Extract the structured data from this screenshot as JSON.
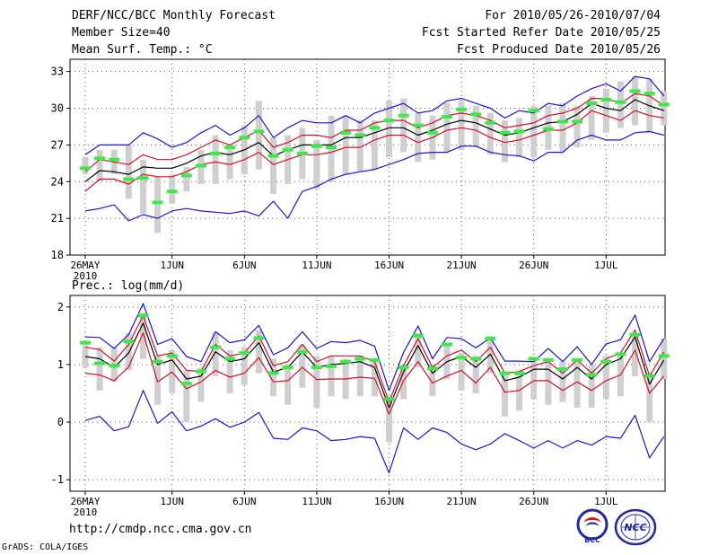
{
  "header": {
    "title": "DERF/NCC/BCC Monthly Forecast",
    "member_size": "Member Size=40",
    "variable": "Mean Surf. Temp.: °C",
    "period": "For 2010/05/26-2010/07/04",
    "refer_date": "Fcst Started Refer Date 2010/05/25",
    "produced_date": "Fcst Produced Date 2010/05/26"
  },
  "footer": {
    "url": "http://cmdp.ncc.cma.gov.cn",
    "credit": "GrADS: COLA/IGES",
    "logo_bcc": "BCC",
    "logo_ncc": "NCC"
  },
  "colors": {
    "ensemble_mean": "#000000",
    "spread": "#d2102a",
    "extremes": "#1c16c8",
    "box": "#cfcfcf",
    "median": "#3ee84a",
    "grid": "#555555"
  },
  "chart_data": [
    {
      "type": "line",
      "title": "Mean Surf. Temp.: °C",
      "ylim": [
        18,
        34
      ],
      "yticks": [
        18,
        21,
        24,
        27,
        30,
        33
      ],
      "grid": true,
      "x_labels": [
        {
          "day": 1,
          "label": "26MAY",
          "sub": "2010"
        },
        {
          "day": 7,
          "label": "1JUN"
        },
        {
          "day": 12,
          "label": "6JUN"
        },
        {
          "day": 17,
          "label": "11JUN"
        },
        {
          "day": 22,
          "label": "16JUN"
        },
        {
          "day": 27,
          "label": "21JUN"
        },
        {
          "day": 32,
          "label": "26JUN"
        },
        {
          "day": 37,
          "label": "1JUL"
        }
      ],
      "series": [
        {
          "name": "ensemble-max",
          "color_key": "extremes",
          "values": [
            26.2,
            27.0,
            27.0,
            27.0,
            28.0,
            27.5,
            26.8,
            27.2,
            28.0,
            28.6,
            27.8,
            28.4,
            29.4,
            27.6,
            28.4,
            29.0,
            28.8,
            28.8,
            29.4,
            28.8,
            29.6,
            30.0,
            30.4,
            29.6,
            29.8,
            30.6,
            30.8,
            30.4,
            30.0,
            29.2,
            29.8,
            29.6,
            30.4,
            30.2,
            31.0,
            31.6,
            32.0,
            31.4,
            32.6,
            32.4,
            31.0
          ]
        },
        {
          "name": "ensemble-mean-plus",
          "color_key": "spread",
          "values": [
            24.8,
            25.8,
            25.6,
            25.4,
            26.2,
            25.8,
            25.8,
            26.2,
            26.8,
            27.4,
            27.0,
            27.6,
            28.2,
            26.8,
            27.2,
            27.8,
            27.8,
            27.6,
            28.2,
            28.2,
            28.8,
            29.0,
            29.0,
            28.4,
            28.8,
            29.4,
            29.6,
            29.4,
            29.0,
            28.4,
            28.6,
            28.8,
            29.4,
            29.6,
            30.0,
            30.8,
            30.8,
            30.4,
            31.2,
            31.0,
            30.2
          ]
        },
        {
          "name": "ensemble-mean",
          "color_key": "ensemble_mean",
          "values": [
            24.0,
            24.9,
            24.8,
            24.6,
            25.2,
            25.1,
            25.1,
            25.5,
            26.1,
            26.4,
            26.2,
            26.6,
            27.2,
            26.1,
            26.6,
            27.0,
            27.0,
            27.0,
            27.6,
            27.6,
            28.0,
            28.4,
            28.4,
            27.8,
            28.2,
            28.7,
            29.0,
            28.8,
            28.3,
            27.8,
            28.0,
            28.4,
            28.8,
            28.9,
            29.5,
            30.4,
            30.0,
            29.8,
            30.7,
            30.2,
            29.8
          ]
        },
        {
          "name": "ensemble-mean-minus",
          "color_key": "spread",
          "values": [
            23.2,
            24.2,
            24.2,
            23.8,
            24.6,
            24.4,
            24.4,
            24.8,
            25.4,
            25.6,
            25.4,
            25.8,
            26.4,
            25.4,
            25.8,
            26.2,
            26.2,
            26.4,
            26.8,
            26.8,
            27.4,
            27.8,
            27.8,
            27.2,
            27.6,
            28.2,
            28.4,
            28.2,
            27.6,
            27.2,
            27.4,
            27.8,
            28.2,
            28.2,
            28.8,
            29.8,
            29.4,
            29.0,
            29.8,
            29.4,
            29.2
          ]
        },
        {
          "name": "ensemble-min",
          "color_key": "extremes",
          "values": [
            21.6,
            21.8,
            22.1,
            20.8,
            21.3,
            21.0,
            21.6,
            21.8,
            21.6,
            21.5,
            21.4,
            21.6,
            21.2,
            22.4,
            21.0,
            23.2,
            23.6,
            24.2,
            24.6,
            24.8,
            25.0,
            25.4,
            25.8,
            26.3,
            26.4,
            26.4,
            26.9,
            26.9,
            26.4,
            26.2,
            26.1,
            25.7,
            26.4,
            26.4,
            27.4,
            27.8,
            27.4,
            27.4,
            28.0,
            28.1,
            27.8
          ]
        }
      ],
      "boxes": [
        {
          "lo": 24.6,
          "hi": 26.0,
          "median": 25.1
        },
        {
          "lo": 24.0,
          "hi": 26.6,
          "median": 25.9
        },
        {
          "lo": 24.6,
          "hi": 26.6,
          "median": 25.8
        },
        {
          "lo": 22.6,
          "hi": 27.0,
          "median": 24.2
        },
        {
          "lo": 21.4,
          "hi": 25.8,
          "median": 24.3
        },
        {
          "lo": 19.8,
          "hi": 24.4,
          "median": 22.3
        },
        {
          "lo": 22.2,
          "hi": 24.6,
          "median": 23.2
        },
        {
          "lo": 23.2,
          "hi": 25.2,
          "median": 24.5
        },
        {
          "lo": 23.8,
          "hi": 26.6,
          "median": 25.3
        },
        {
          "lo": 23.8,
          "hi": 27.8,
          "median": 26.3
        },
        {
          "lo": 24.2,
          "hi": 27.0,
          "median": 26.8
        },
        {
          "lo": 24.6,
          "hi": 28.6,
          "median": 27.6
        },
        {
          "lo": 25.0,
          "hi": 30.6,
          "median": 28.1
        },
        {
          "lo": 23.0,
          "hi": 27.6,
          "median": 26.1
        },
        {
          "lo": 23.8,
          "hi": 27.8,
          "median": 26.6
        },
        {
          "lo": 24.2,
          "hi": 28.4,
          "median": 26.3
        },
        {
          "lo": 23.4,
          "hi": 27.4,
          "median": 26.9
        },
        {
          "lo": 24.0,
          "hi": 29.4,
          "median": 26.8
        },
        {
          "lo": 24.6,
          "hi": 29.4,
          "median": 28.0
        },
        {
          "lo": 24.8,
          "hi": 29.0,
          "median": 27.8
        },
        {
          "lo": 25.0,
          "hi": 29.0,
          "median": 28.4
        },
        {
          "lo": 26.0,
          "hi": 30.6,
          "median": 29.0
        },
        {
          "lo": 26.4,
          "hi": 30.8,
          "median": 29.4
        },
        {
          "lo": 25.6,
          "hi": 29.6,
          "median": 28.6
        },
        {
          "lo": 25.8,
          "hi": 29.4,
          "median": 28.0
        },
        {
          "lo": 26.4,
          "hi": 30.4,
          "median": 29.3
        },
        {
          "lo": 26.6,
          "hi": 30.6,
          "median": 29.9
        },
        {
          "lo": 26.8,
          "hi": 30.2,
          "median": 29.5
        },
        {
          "lo": 26.2,
          "hi": 29.6,
          "median": 28.8
        },
        {
          "lo": 25.6,
          "hi": 29.0,
          "median": 28.0
        },
        {
          "lo": 26.0,
          "hi": 29.2,
          "median": 28.1
        },
        {
          "lo": 26.0,
          "hi": 30.2,
          "median": 29.8
        },
        {
          "lo": 26.6,
          "hi": 30.2,
          "median": 28.3
        },
        {
          "lo": 26.4,
          "hi": 30.4,
          "median": 28.9
        },
        {
          "lo": 26.8,
          "hi": 30.2,
          "median": 28.9
        },
        {
          "lo": 27.4,
          "hi": 31.0,
          "median": 30.4
        },
        {
          "lo": 28.0,
          "hi": 31.6,
          "median": 30.7
        },
        {
          "lo": 28.4,
          "hi": 32.2,
          "median": 30.5
        },
        {
          "lo": 28.6,
          "hi": 32.6,
          "median": 31.4
        },
        {
          "lo": 28.0,
          "hi": 32.4,
          "median": 31.2
        },
        {
          "lo": 28.6,
          "hi": 31.4,
          "median": 30.3
        }
      ]
    },
    {
      "type": "line",
      "title": "Prec.: log(mm/d)",
      "ylim": [
        -1.2,
        2.2
      ],
      "yticks": [
        -1,
        0,
        1,
        2
      ],
      "grid": true,
      "x_labels": [
        {
          "day": 1,
          "label": "26MAY",
          "sub": "2010"
        },
        {
          "day": 7,
          "label": "1JUN"
        },
        {
          "day": 12,
          "label": "6JUN"
        },
        {
          "day": 17,
          "label": "11JUN"
        },
        {
          "day": 22,
          "label": "16JUN"
        },
        {
          "day": 27,
          "label": "21JUN"
        },
        {
          "day": 32,
          "label": "26JUN"
        },
        {
          "day": 37,
          "label": "1JUL"
        }
      ],
      "series": [
        {
          "name": "ensemble-max",
          "color_key": "extremes",
          "values": [
            1.48,
            1.47,
            1.28,
            1.52,
            2.06,
            1.35,
            1.45,
            1.14,
            1.05,
            1.57,
            1.38,
            1.43,
            1.68,
            1.17,
            1.29,
            1.57,
            1.28,
            1.4,
            1.38,
            1.42,
            1.32,
            0.55,
            1.21,
            1.67,
            1.1,
            1.47,
            1.45,
            1.29,
            1.46,
            1.06,
            1.06,
            1.05,
            1.28,
            1.05,
            1.31,
            1.0,
            1.36,
            1.43,
            1.86,
            1.05,
            1.45
          ]
        },
        {
          "name": "ensemble-mean-plus",
          "color_key": "spread",
          "values": [
            1.3,
            1.26,
            1.06,
            1.35,
            1.85,
            1.15,
            1.2,
            0.9,
            0.88,
            1.35,
            1.15,
            1.2,
            1.5,
            0.98,
            1.05,
            1.35,
            1.05,
            1.15,
            1.15,
            1.15,
            1.05,
            0.35,
            0.98,
            1.45,
            0.95,
            1.15,
            1.25,
            1.05,
            1.3,
            0.85,
            0.88,
            0.98,
            1.05,
            0.85,
            1.08,
            0.85,
            1.1,
            1.2,
            1.6,
            0.8,
            1.22
          ]
        },
        {
          "name": "ensemble-mean",
          "color_key": "ensemble_mean",
          "values": [
            1.14,
            1.1,
            0.95,
            1.2,
            1.72,
            1.0,
            1.08,
            0.75,
            0.8,
            1.22,
            1.05,
            1.1,
            1.38,
            0.87,
            0.95,
            1.22,
            0.95,
            1.0,
            1.02,
            1.05,
            0.95,
            0.25,
            0.87,
            1.33,
            0.85,
            1.05,
            1.14,
            0.95,
            1.18,
            0.72,
            0.78,
            0.92,
            0.92,
            0.75,
            0.95,
            0.75,
            1.0,
            1.1,
            1.48,
            0.66,
            1.08
          ]
        },
        {
          "name": "ensemble-mean-minus",
          "color_key": "spread",
          "values": [
            0.85,
            0.82,
            0.72,
            0.96,
            1.55,
            0.7,
            0.87,
            0.58,
            0.7,
            0.9,
            0.78,
            0.85,
            1.12,
            0.7,
            0.72,
            0.95,
            0.74,
            0.75,
            0.75,
            0.78,
            0.76,
            0.14,
            0.72,
            1.05,
            0.68,
            0.8,
            0.9,
            0.68,
            0.95,
            0.52,
            0.55,
            0.72,
            0.72,
            0.55,
            0.7,
            0.55,
            0.72,
            0.82,
            1.25,
            0.5,
            0.8
          ]
        },
        {
          "name": "ensemble-min",
          "color_key": "extremes",
          "values": [
            0.03,
            0.1,
            -0.15,
            -0.08,
            0.55,
            -0.02,
            0.18,
            -0.15,
            -0.07,
            0.06,
            -0.09,
            0.0,
            0.17,
            -0.28,
            -0.3,
            -0.1,
            -0.15,
            -0.32,
            -0.3,
            -0.25,
            -0.28,
            -0.88,
            -0.1,
            -0.3,
            -0.1,
            -0.18,
            -0.38,
            -0.48,
            -0.38,
            -0.2,
            -0.32,
            -0.45,
            -0.32,
            -0.45,
            -0.32,
            -0.4,
            -0.25,
            -0.28,
            0.12,
            -0.62,
            -0.25
          ]
        }
      ],
      "boxes": [
        {
          "lo": 0.95,
          "hi": 1.4,
          "median": 1.38
        },
        {
          "lo": 0.55,
          "hi": 1.3,
          "median": 1.02
        },
        {
          "lo": 0.7,
          "hi": 1.3,
          "median": 0.98
        },
        {
          "lo": 0.9,
          "hi": 1.55,
          "median": 1.4
        },
        {
          "lo": 1.1,
          "hi": 1.9,
          "median": 1.85
        },
        {
          "lo": 0.3,
          "hi": 1.15,
          "median": 1.05
        },
        {
          "lo": 0.5,
          "hi": 1.25,
          "median": 1.15
        },
        {
          "lo": 0.0,
          "hi": 0.9,
          "median": 0.67
        },
        {
          "lo": 0.35,
          "hi": 0.95,
          "median": 0.88
        },
        {
          "lo": 0.8,
          "hi": 1.55,
          "median": 1.3
        },
        {
          "lo": 0.5,
          "hi": 1.25,
          "median": 1.1
        },
        {
          "lo": 0.65,
          "hi": 1.3,
          "median": 1.2
        },
        {
          "lo": 0.85,
          "hi": 1.6,
          "median": 1.46
        },
        {
          "lo": 0.45,
          "hi": 1.1,
          "median": 0.85
        },
        {
          "lo": 0.3,
          "hi": 1.0,
          "median": 0.95
        },
        {
          "lo": 0.6,
          "hi": 1.35,
          "median": 1.22
        },
        {
          "lo": 0.25,
          "hi": 1.15,
          "median": 0.95
        },
        {
          "lo": 0.45,
          "hi": 1.15,
          "median": 0.97
        },
        {
          "lo": 0.4,
          "hi": 1.1,
          "median": 1.05
        },
        {
          "lo": 0.45,
          "hi": 1.15,
          "median": 1.1
        },
        {
          "lo": 0.45,
          "hi": 1.1,
          "median": 1.08
        },
        {
          "lo": -0.35,
          "hi": 0.45,
          "median": 0.4
        },
        {
          "lo": 0.4,
          "hi": 1.0,
          "median": 0.95
        },
        {
          "lo": 0.95,
          "hi": 1.55,
          "median": 1.5
        },
        {
          "lo": 0.45,
          "hi": 1.0,
          "median": 0.93
        },
        {
          "lo": 0.75,
          "hi": 1.35,
          "median": 1.35
        },
        {
          "lo": 0.55,
          "hi": 1.2,
          "median": 1.12
        },
        {
          "lo": 0.5,
          "hi": 1.15,
          "median": 1.1
        },
        {
          "lo": 0.85,
          "hi": 1.5,
          "median": 1.45
        },
        {
          "lo": 0.1,
          "hi": 0.85,
          "median": 0.85
        },
        {
          "lo": 0.2,
          "hi": 0.9,
          "median": 0.85
        },
        {
          "lo": 0.4,
          "hi": 1.1,
          "median": 1.1
        },
        {
          "lo": 0.3,
          "hi": 1.05,
          "median": 1.08
        },
        {
          "lo": 0.35,
          "hi": 1.05,
          "median": 0.92
        },
        {
          "lo": 0.25,
          "hi": 1.1,
          "median": 1.08
        },
        {
          "lo": 0.25,
          "hi": 1.0,
          "median": 0.82
        },
        {
          "lo": 0.4,
          "hi": 1.15,
          "median": 1.05
        },
        {
          "lo": 0.45,
          "hi": 1.2,
          "median": 1.18
        },
        {
          "lo": 0.8,
          "hi": 1.55,
          "median": 1.52
        },
        {
          "lo": 0.0,
          "hi": 0.85,
          "median": 0.8
        },
        {
          "lo": 0.75,
          "hi": 1.45,
          "median": 1.15
        }
      ]
    }
  ]
}
